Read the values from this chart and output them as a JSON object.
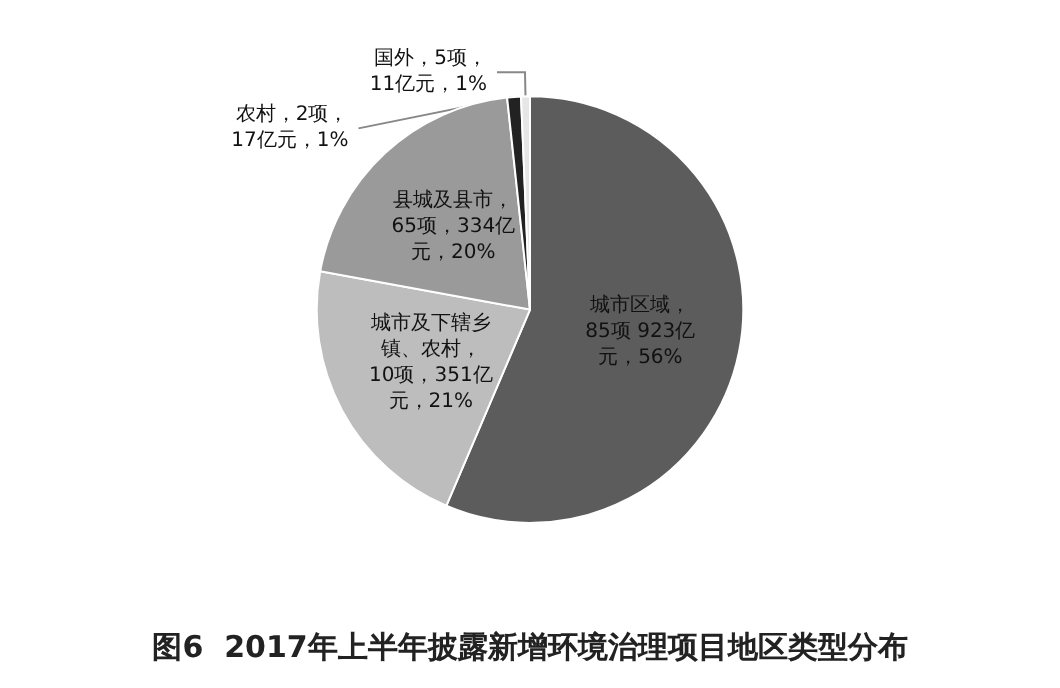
{
  "chart_data": {
    "type": "pie",
    "title": "图6  2017年上半年披露新增环境治理项目地区类型分布",
    "categories": [
      "城市区域",
      "城市及下辖乡镇、农村",
      "县城及县市",
      "农村",
      "国外"
    ],
    "values": [
      923,
      351,
      334,
      17,
      11
    ],
    "value_labels": [
      "，85项 923亿元，56%",
      "，10项，351亿元，21%",
      "，65项，334亿元，20%",
      "，2项，17亿元，1%",
      "，5项，11亿元，1%"
    ],
    "colors": [
      "#5c5c5c",
      "#bdbdbd",
      "#9a9a9a",
      "#222222",
      "#e6e6e6"
    ]
  }
}
